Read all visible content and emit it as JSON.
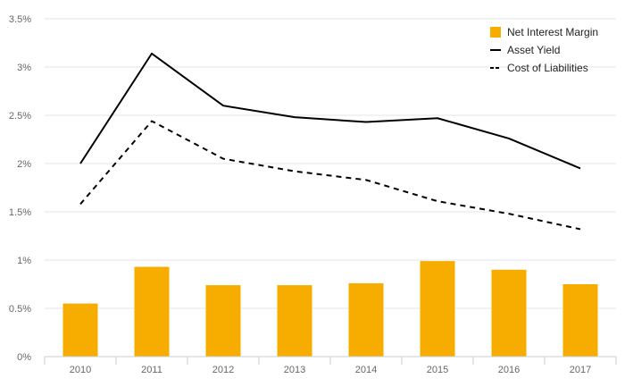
{
  "chart_data": {
    "type": "bar",
    "title": "",
    "xlabel": "",
    "ylabel": "",
    "ylim": [
      0,
      3.5
    ],
    "y_ticks": [
      0,
      0.5,
      1,
      1.5,
      2,
      2.5,
      3,
      3.5
    ],
    "y_tick_labels": [
      "0%",
      "0.5%",
      "1%",
      "1.5%",
      "2%",
      "2.5%",
      "3%",
      "3.5%"
    ],
    "grid": true,
    "legend_position": "top-right",
    "categories": [
      "2010",
      "2011",
      "2012",
      "2013",
      "2014",
      "2015",
      "2016",
      "2017"
    ],
    "series": [
      {
        "name": "Net Interest Margin",
        "type": "bar",
        "color": "#f7ad00",
        "values": [
          0.55,
          0.93,
          0.74,
          0.74,
          0.76,
          0.99,
          0.9,
          0.75
        ]
      },
      {
        "name": "Asset Yield",
        "type": "line",
        "style": "solid",
        "color": "#000000",
        "values": [
          2.0,
          3.14,
          2.6,
          2.48,
          2.43,
          2.47,
          2.26,
          1.95
        ]
      },
      {
        "name": "Cost of Liabilities",
        "type": "line",
        "style": "dashed",
        "color": "#000000",
        "values": [
          1.58,
          2.44,
          2.05,
          1.92,
          1.83,
          1.61,
          1.48,
          1.32
        ]
      }
    ]
  }
}
